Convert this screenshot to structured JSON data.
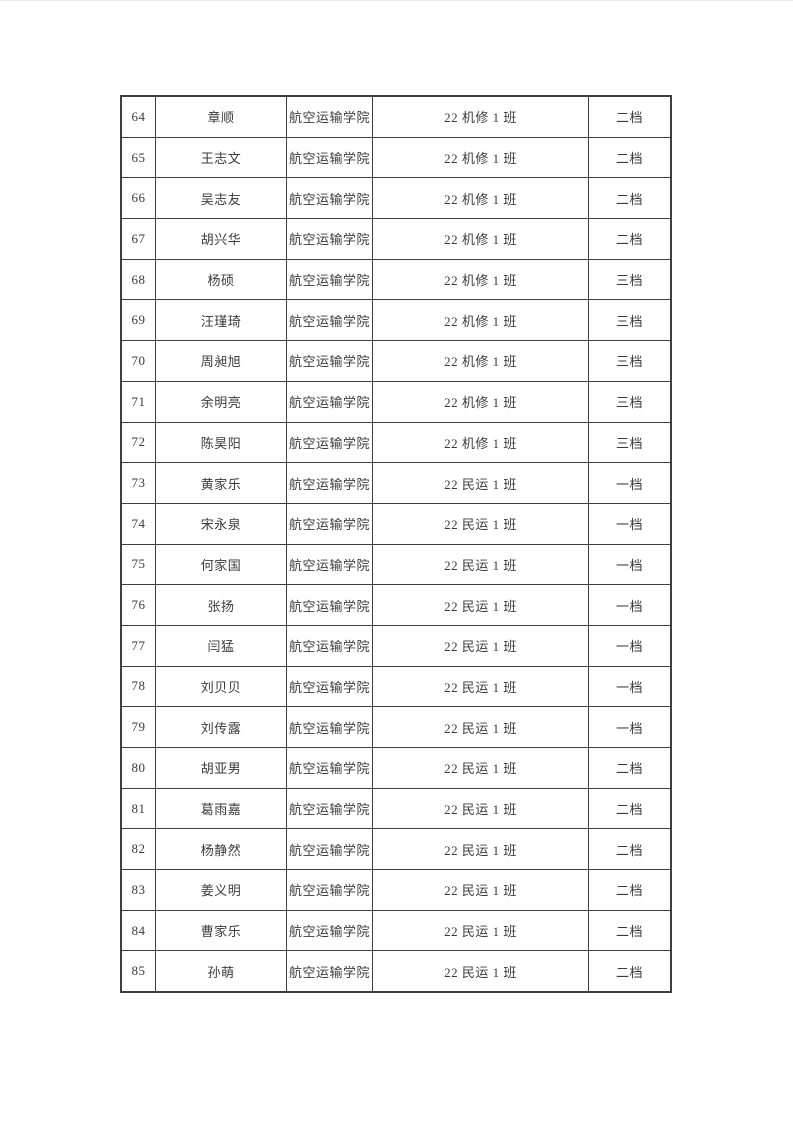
{
  "page": {
    "background": "#ffffff",
    "text_color": "#3b3b3b",
    "border_color": "#3f3f3f"
  },
  "table": {
    "rows": [
      {
        "no": "64",
        "name": "章顺",
        "college": "航空运输学院",
        "class": "22 机修 1 班",
        "level": "二档"
      },
      {
        "no": "65",
        "name": "王志文",
        "college": "航空运输学院",
        "class": "22 机修 1 班",
        "level": "二档"
      },
      {
        "no": "66",
        "name": "吴志友",
        "college": "航空运输学院",
        "class": "22 机修 1 班",
        "level": "二档"
      },
      {
        "no": "67",
        "name": "胡兴华",
        "college": "航空运输学院",
        "class": "22 机修 1 班",
        "level": "二档"
      },
      {
        "no": "68",
        "name": "杨硕",
        "college": "航空运输学院",
        "class": "22 机修 1 班",
        "level": "三档"
      },
      {
        "no": "69",
        "name": "汪瑾琦",
        "college": "航空运输学院",
        "class": "22 机修 1 班",
        "level": "三档"
      },
      {
        "no": "70",
        "name": "周昶旭",
        "college": "航空运输学院",
        "class": "22 机修 1 班",
        "level": "三档"
      },
      {
        "no": "71",
        "name": "余明亮",
        "college": "航空运输学院",
        "class": "22 机修 1 班",
        "level": "三档"
      },
      {
        "no": "72",
        "name": "陈昊阳",
        "college": "航空运输学院",
        "class": "22 机修 1 班",
        "level": "三档"
      },
      {
        "no": "73",
        "name": "黄家乐",
        "college": "航空运输学院",
        "class": "22 民运 1 班",
        "level": "一档"
      },
      {
        "no": "74",
        "name": "宋永泉",
        "college": "航空运输学院",
        "class": "22 民运 1 班",
        "level": "一档"
      },
      {
        "no": "75",
        "name": "何家国",
        "college": "航空运输学院",
        "class": "22 民运 1 班",
        "level": "一档"
      },
      {
        "no": "76",
        "name": "张扬",
        "college": "航空运输学院",
        "class": "22 民运 1 班",
        "level": "一档"
      },
      {
        "no": "77",
        "name": "闫猛",
        "college": "航空运输学院",
        "class": "22 民运 1 班",
        "level": "一档"
      },
      {
        "no": "78",
        "name": "刘贝贝",
        "college": "航空运输学院",
        "class": "22 民运 1 班",
        "level": "一档"
      },
      {
        "no": "79",
        "name": "刘传露",
        "college": "航空运输学院",
        "class": "22 民运 1 班",
        "level": "一档"
      },
      {
        "no": "80",
        "name": "胡亚男",
        "college": "航空运输学院",
        "class": "22 民运 1 班",
        "level": "二档"
      },
      {
        "no": "81",
        "name": "葛雨嘉",
        "college": "航空运输学院",
        "class": "22 民运 1 班",
        "level": "二档"
      },
      {
        "no": "82",
        "name": "杨静然",
        "college": "航空运输学院",
        "class": "22 民运 1 班",
        "level": "二档"
      },
      {
        "no": "83",
        "name": "姜义明",
        "college": "航空运输学院",
        "class": "22 民运 1 班",
        "level": "二档"
      },
      {
        "no": "84",
        "name": "曹家乐",
        "college": "航空运输学院",
        "class": "22 民运 1 班",
        "level": "二档"
      },
      {
        "no": "85",
        "name": "孙萌",
        "college": "航空运输学院",
        "class": "22 民运 1 班",
        "level": "二档"
      }
    ]
  }
}
